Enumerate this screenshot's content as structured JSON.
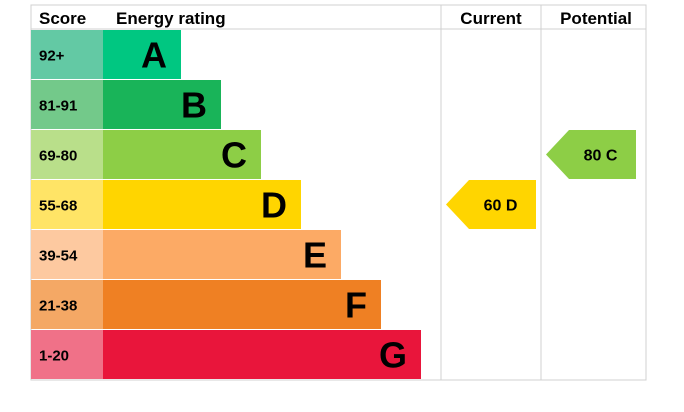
{
  "chart_data": {
    "type": "table",
    "headers": {
      "score": "Score",
      "rating": "Energy rating",
      "current": "Current",
      "potential": "Potential"
    },
    "bands": [
      {
        "range": "92+",
        "letter": "A",
        "color": "#00c781",
        "score_color": "#63c9a4"
      },
      {
        "range": "81-91",
        "letter": "B",
        "color": "#19b459",
        "score_color": "#73c98a"
      },
      {
        "range": "69-80",
        "letter": "C",
        "color": "#8dce46",
        "score_color": "#b9df8a"
      },
      {
        "range": "55-68",
        "letter": "D",
        "color": "#ffd500",
        "score_color": "#ffe466"
      },
      {
        "range": "39-54",
        "letter": "E",
        "color": "#fcaa65",
        "score_color": "#fdc9a0"
      },
      {
        "range": "21-38",
        "letter": "F",
        "color": "#ef8023",
        "score_color": "#f4a865"
      },
      {
        "range": "1-20",
        "letter": "G",
        "color": "#e9153b",
        "score_color": "#f07188"
      }
    ],
    "current": {
      "value": 60,
      "letter": "D",
      "label": "60  D",
      "color": "#ffd500"
    },
    "potential": {
      "value": 80,
      "letter": "C",
      "label": "80  C",
      "color": "#8dce46"
    },
    "grid_color": "#d0d0d0"
  }
}
